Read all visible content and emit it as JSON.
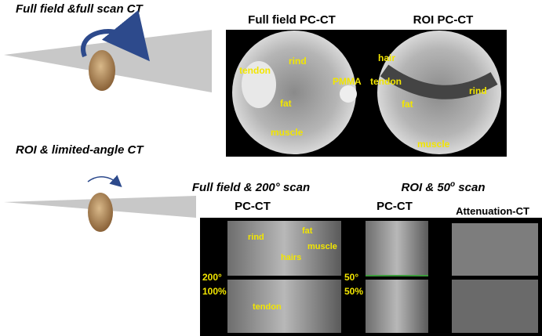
{
  "left": {
    "full_title": "Full field &full scan CT",
    "roi_title": "ROI & limited-angle CT"
  },
  "top": {
    "titles": [
      "Full field PC-CT",
      "ROI PC-CT"
    ],
    "full_labels": [
      "tendon",
      "rind",
      "PMMA",
      "fat",
      "muscle"
    ],
    "roi_labels": [
      "hair",
      "tendon",
      "rind",
      "fat",
      "muscle"
    ]
  },
  "bottom": {
    "full_title": "Full field & 200° scan",
    "roi_title": {
      "before": "ROI & 50",
      "superscript": "o",
      "after": " scan"
    },
    "column_titles": [
      "PC-CT",
      "PC-CT",
      "Attenuation-CT"
    ],
    "panel_labels": [
      "rind",
      "fat",
      "muscle",
      "hairs",
      "tendon"
    ],
    "full_angle": "200°",
    "full_percent": "100%",
    "roi_angle": "50°",
    "roi_percent": "50%"
  }
}
